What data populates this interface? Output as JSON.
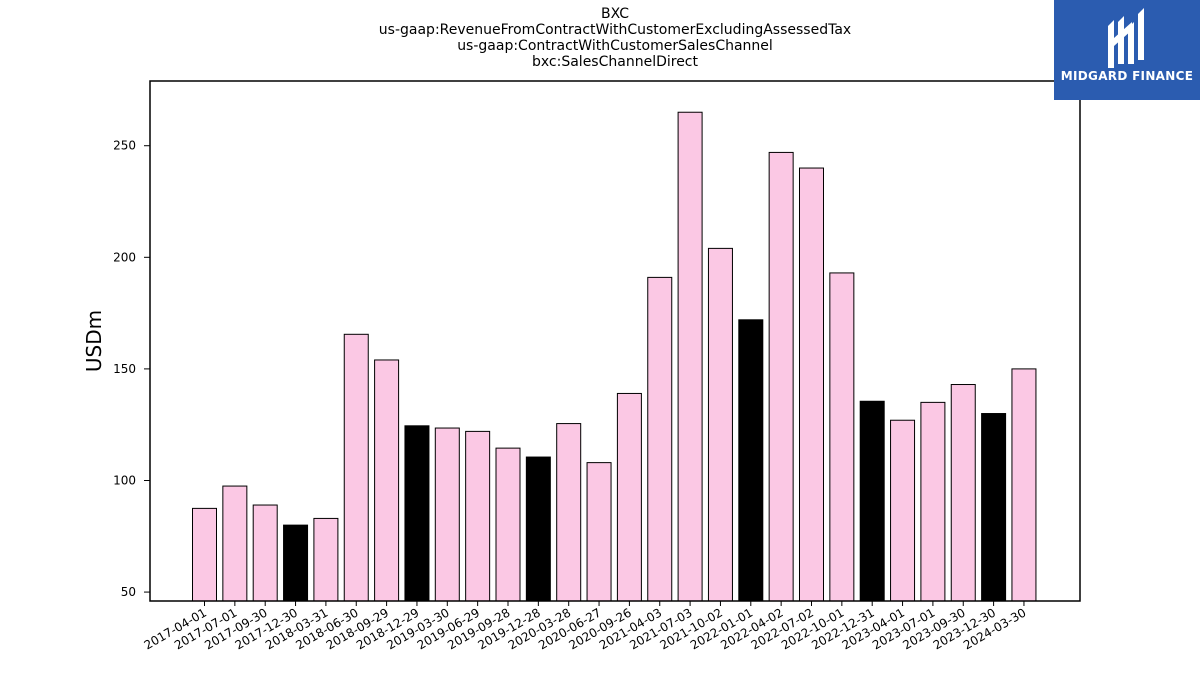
{
  "chart_data": {
    "type": "bar",
    "title_lines": [
      "BXC",
      "us-gaap:RevenueFromContractWithCustomerExcludingAssessedTax",
      "us-gaap:ContractWithCustomerSalesChannel",
      "bxc:SalesChannelDirect"
    ],
    "xlabel": "",
    "ylabel": "USDm",
    "ylim": [
      46,
      279
    ],
    "yticks": [
      50,
      100,
      150,
      200,
      250
    ],
    "grid": false,
    "categories": [
      "2017-04-01",
      "2017-07-01",
      "2017-09-30",
      "2017-12-30",
      "2018-03-31",
      "2018-06-30",
      "2018-09-29",
      "2018-12-29",
      "2019-03-30",
      "2019-06-29",
      "2019-09-28",
      "2019-12-28",
      "2020-03-28",
      "2020-06-27",
      "2020-09-26",
      "2021-04-03",
      "2021-07-03",
      "2021-10-02",
      "2022-01-01",
      "2022-04-02",
      "2022-07-02",
      "2022-10-01",
      "2022-12-31",
      "2023-04-01",
      "2023-07-01",
      "2023-09-30",
      "2023-12-30",
      "2024-03-30"
    ],
    "values": [
      87.5,
      97.5,
      89,
      80,
      83,
      165.5,
      154,
      124.5,
      123.5,
      122,
      114.5,
      110.5,
      125.5,
      108,
      139,
      191,
      265,
      204,
      172,
      247,
      240,
      193,
      135.5,
      127,
      135,
      143,
      130,
      150
    ],
    "highlight": [
      false,
      false,
      false,
      true,
      false,
      false,
      false,
      true,
      false,
      false,
      false,
      true,
      false,
      false,
      false,
      false,
      false,
      false,
      true,
      false,
      false,
      false,
      true,
      false,
      false,
      false,
      true,
      false
    ],
    "colors": {
      "default_bar": "#fbc8e4",
      "highlight_bar": "#000000",
      "edge": "#000000"
    }
  },
  "logo": {
    "text": "MIDGARD FINANCE",
    "background": "#2b5cb0"
  }
}
